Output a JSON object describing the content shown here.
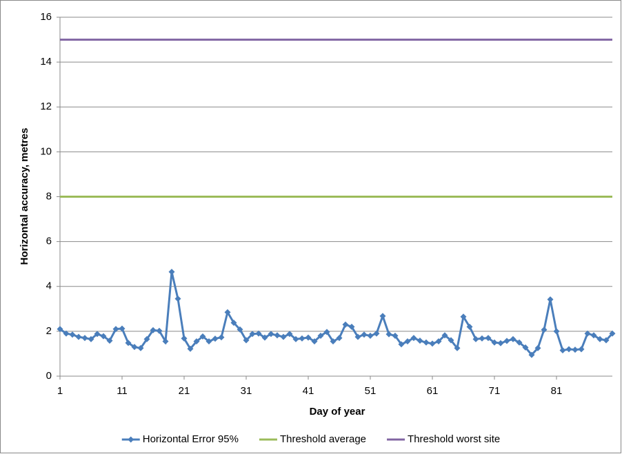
{
  "chart_data": {
    "type": "line",
    "x_label": "Day of year",
    "y_label": "Horizontal accuracy, metres",
    "xlim": [
      1,
      90
    ],
    "xticks": [
      1,
      11,
      21,
      31,
      41,
      51,
      61,
      71,
      81
    ],
    "ylim": [
      0,
      16
    ],
    "yticks": [
      0,
      2,
      4,
      6,
      8,
      10,
      12,
      14,
      16
    ],
    "grid": true,
    "legend": "bottom",
    "series": [
      {
        "name": "Horizontal Error 95%",
        "color": "#4a7ebb",
        "marker": "diamond",
        "x": [
          1,
          2,
          3,
          4,
          5,
          6,
          7,
          8,
          9,
          10,
          11,
          12,
          13,
          14,
          15,
          16,
          17,
          18,
          19,
          20,
          21,
          22,
          23,
          24,
          25,
          26,
          27,
          28,
          29,
          30,
          31,
          32,
          33,
          34,
          35,
          36,
          37,
          38,
          39,
          40,
          41,
          42,
          43,
          44,
          45,
          46,
          47,
          48,
          49,
          50,
          51,
          52,
          53,
          54,
          55,
          56,
          57,
          58,
          59,
          60,
          61,
          62,
          63,
          64,
          65,
          66,
          67,
          68,
          69,
          70,
          71,
          72,
          73,
          74,
          75,
          76,
          77,
          78,
          79,
          80,
          81,
          82,
          83,
          84,
          85,
          86,
          87,
          88,
          89,
          90
        ],
        "values": [
          2.1,
          1.9,
          1.85,
          1.75,
          1.7,
          1.65,
          1.88,
          1.78,
          1.58,
          2.1,
          2.12,
          1.48,
          1.3,
          1.25,
          1.65,
          2.05,
          2.02,
          1.55,
          4.65,
          3.45,
          1.68,
          1.22,
          1.55,
          1.77,
          1.55,
          1.67,
          1.73,
          2.85,
          2.38,
          2.08,
          1.6,
          1.88,
          1.9,
          1.72,
          1.88,
          1.82,
          1.75,
          1.88,
          1.65,
          1.68,
          1.72,
          1.55,
          1.8,
          1.97,
          1.55,
          1.7,
          2.3,
          2.2,
          1.75,
          1.85,
          1.8,
          1.9,
          2.68,
          1.87,
          1.8,
          1.42,
          1.55,
          1.7,
          1.58,
          1.5,
          1.45,
          1.55,
          1.82,
          1.6,
          1.25,
          2.65,
          2.2,
          1.65,
          1.68,
          1.7,
          1.5,
          1.47,
          1.57,
          1.65,
          1.5,
          1.28,
          0.95,
          1.25,
          2.07,
          3.42,
          2.0,
          1.15,
          1.2,
          1.18,
          1.2,
          1.9,
          1.82,
          1.65,
          1.6,
          1.9
        ]
      },
      {
        "name": "Threshold average",
        "color": "#9bbb59",
        "x": [
          1,
          90
        ],
        "values": [
          8,
          8
        ]
      },
      {
        "name": "Threshold worst site",
        "color": "#8064a2",
        "x": [
          1,
          90
        ],
        "values": [
          15,
          15
        ]
      }
    ]
  }
}
